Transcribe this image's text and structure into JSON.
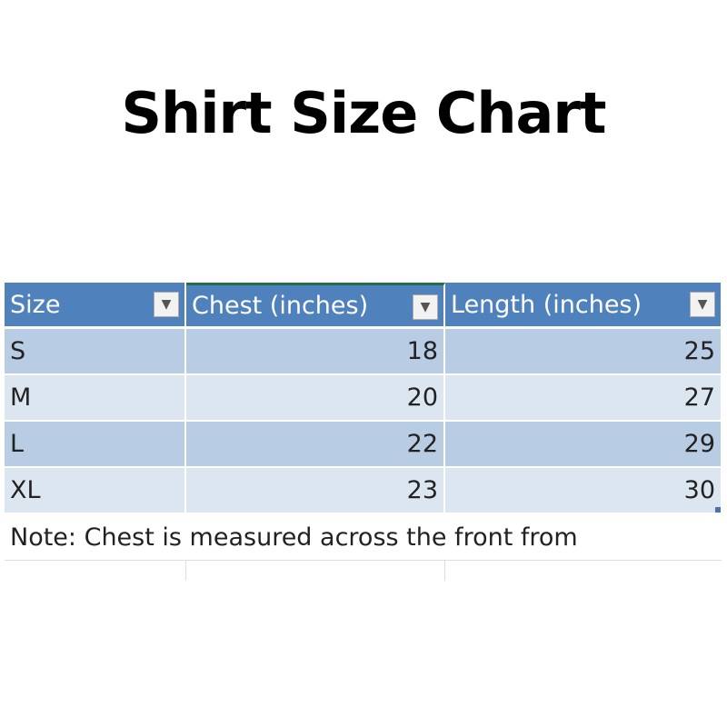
{
  "title": "Shirt Size Chart",
  "table": {
    "headers": [
      "Size",
      "Chest (inches)",
      "Length (inches)"
    ],
    "rows": [
      [
        "S",
        "18",
        "25"
      ],
      [
        "M",
        "20",
        "27"
      ],
      [
        "L",
        "22",
        "29"
      ],
      [
        "XL",
        "23",
        "30"
      ]
    ],
    "note": "Note: Chest is measured across the front from"
  },
  "colors": {
    "header": "#4f81bd",
    "band_dark": "#b8cce4",
    "band_light": "#dce6f1"
  },
  "icons": {
    "filter": "dropdown-arrow-icon"
  }
}
